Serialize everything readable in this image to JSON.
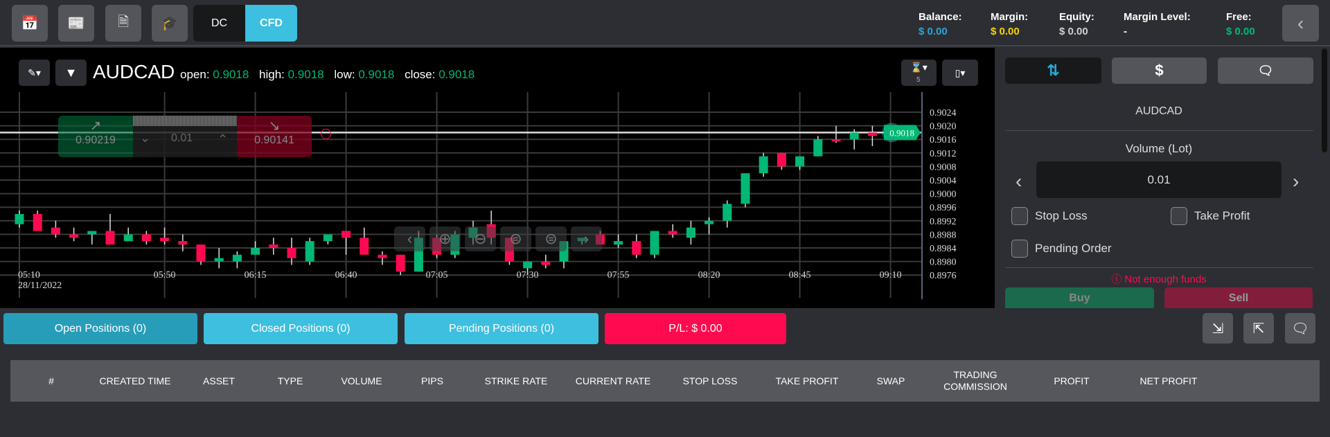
{
  "topbar": {
    "icons": [
      "calendar-icon",
      "economic-news-icon",
      "news-icon",
      "education-icon"
    ],
    "mode_dc": "DC",
    "mode_cfd": "CFD",
    "stats": {
      "balance_label": "Balance:",
      "balance_value": "$ 0.00",
      "margin_label": "Margin:",
      "margin_value": "$ 0.00",
      "equity_label": "Equity:",
      "equity_value": "$ 0.00",
      "margin_level_label": "Margin Level:",
      "margin_level_value": "-",
      "free_label": "Free:",
      "free_value": "$ 0.00"
    },
    "colors": {
      "balance": "#2aa6d6",
      "margin": "#f5d400",
      "equity": "#d0d0d0",
      "free": "#00b874",
      "cfd_active": "#3dbfe0"
    }
  },
  "chart_header": {
    "symbol": "AUDCAD",
    "open_label": "open:",
    "open": "0.9018",
    "high_label": "high:",
    "high": "0.9018",
    "low_label": "low:",
    "low": "0.9018",
    "close_label": "close:",
    "close": "0.9018",
    "interval_badge": "5"
  },
  "trade_widget": {
    "buy_price": "0.90219",
    "sell_price": "0.90141",
    "volume": "0.01"
  },
  "chart_data": {
    "type": "candlestick",
    "date_label": "28/11/2022",
    "current_price": "0.9018",
    "ylim": [
      0.8972,
      0.9028
    ],
    "y_ticks": [
      "0.9024",
      "0.9020",
      "0.9016",
      "0.9012",
      "0.9008",
      "0.9004",
      "0.9000",
      "0.8996",
      "0.8992",
      "0.8988",
      "0.8984",
      "0.8980",
      "0.8976"
    ],
    "x_ticks": [
      "05:10",
      "05:50",
      "06:15",
      "06:40",
      "07:05",
      "07:30",
      "07:55",
      "08:20",
      "08:45",
      "09:10"
    ],
    "candles": [
      {
        "t": "05:10",
        "o": 0.8991,
        "h": 0.8995,
        "l": 0.899,
        "c": 0.8994
      },
      {
        "t": "05:15",
        "o": 0.8994,
        "h": 0.8995,
        "l": 0.8989,
        "c": 0.8989
      },
      {
        "t": "05:20",
        "o": 0.899,
        "h": 0.8992,
        "l": 0.8987,
        "c": 0.8988
      },
      {
        "t": "05:25",
        "o": 0.8988,
        "h": 0.899,
        "l": 0.8986,
        "c": 0.8987
      },
      {
        "t": "05:30",
        "o": 0.8988,
        "h": 0.8989,
        "l": 0.8985,
        "c": 0.8989
      },
      {
        "t": "05:35",
        "o": 0.8989,
        "h": 0.8994,
        "l": 0.8985,
        "c": 0.8985
      },
      {
        "t": "05:40",
        "o": 0.8986,
        "h": 0.899,
        "l": 0.8986,
        "c": 0.8988
      },
      {
        "t": "05:45",
        "o": 0.8988,
        "h": 0.8989,
        "l": 0.8985,
        "c": 0.8986
      },
      {
        "t": "05:50",
        "o": 0.8987,
        "h": 0.899,
        "l": 0.8985,
        "c": 0.8986
      },
      {
        "t": "05:55",
        "o": 0.8986,
        "h": 0.8988,
        "l": 0.8983,
        "c": 0.8985
      },
      {
        "t": "06:00",
        "o": 0.8985,
        "h": 0.8985,
        "l": 0.8979,
        "c": 0.898
      },
      {
        "t": "06:05",
        "o": 0.898,
        "h": 0.8984,
        "l": 0.8978,
        "c": 0.8981
      },
      {
        "t": "06:10",
        "o": 0.898,
        "h": 0.8983,
        "l": 0.8978,
        "c": 0.8982
      },
      {
        "t": "06:15",
        "o": 0.8982,
        "h": 0.8986,
        "l": 0.8982,
        "c": 0.8984
      },
      {
        "t": "06:20",
        "o": 0.8985,
        "h": 0.8987,
        "l": 0.8982,
        "c": 0.8984
      },
      {
        "t": "06:25",
        "o": 0.8984,
        "h": 0.8987,
        "l": 0.8979,
        "c": 0.8981
      },
      {
        "t": "06:30",
        "o": 0.898,
        "h": 0.8987,
        "l": 0.8979,
        "c": 0.8986
      },
      {
        "t": "06:35",
        "o": 0.8986,
        "h": 0.8988,
        "l": 0.8985,
        "c": 0.8988
      },
      {
        "t": "06:40",
        "o": 0.8989,
        "h": 0.8989,
        "l": 0.8982,
        "c": 0.8987
      },
      {
        "t": "06:45",
        "o": 0.8987,
        "h": 0.899,
        "l": 0.8982,
        "c": 0.8982
      },
      {
        "t": "06:50",
        "o": 0.8982,
        "h": 0.8983,
        "l": 0.8979,
        "c": 0.8981
      },
      {
        "t": "06:55",
        "o": 0.8982,
        "h": 0.8982,
        "l": 0.8976,
        "c": 0.8977
      },
      {
        "t": "07:00",
        "o": 0.8977,
        "h": 0.8989,
        "l": 0.8977,
        "c": 0.8987
      },
      {
        "t": "07:05",
        "o": 0.8987,
        "h": 0.8988,
        "l": 0.8981,
        "c": 0.8982
      },
      {
        "t": "07:10",
        "o": 0.8982,
        "h": 0.8989,
        "l": 0.8981,
        "c": 0.8988
      },
      {
        "t": "07:15",
        "o": 0.8987,
        "h": 0.8992,
        "l": 0.8985,
        "c": 0.899
      },
      {
        "t": "07:20",
        "o": 0.8991,
        "h": 0.8995,
        "l": 0.8985,
        "c": 0.8987
      },
      {
        "t": "07:25",
        "o": 0.8987,
        "h": 0.8987,
        "l": 0.8979,
        "c": 0.898
      },
      {
        "t": "07:30",
        "o": 0.8978,
        "h": 0.898,
        "l": 0.8976,
        "c": 0.898
      },
      {
        "t": "07:35",
        "o": 0.898,
        "h": 0.8982,
        "l": 0.8978,
        "c": 0.8979
      },
      {
        "t": "07:40",
        "o": 0.898,
        "h": 0.8986,
        "l": 0.8978,
        "c": 0.8986
      },
      {
        "t": "07:45",
        "o": 0.8986,
        "h": 0.8987,
        "l": 0.8985,
        "c": 0.8987
      },
      {
        "t": "07:50",
        "o": 0.8988,
        "h": 0.8989,
        "l": 0.8985,
        "c": 0.8985
      },
      {
        "t": "07:55",
        "o": 0.8985,
        "h": 0.8988,
        "l": 0.8984,
        "c": 0.8986
      },
      {
        "t": "08:00",
        "o": 0.8986,
        "h": 0.8988,
        "l": 0.8981,
        "c": 0.8982
      },
      {
        "t": "08:05",
        "o": 0.8982,
        "h": 0.8989,
        "l": 0.8981,
        "c": 0.8989
      },
      {
        "t": "08:10",
        "o": 0.8989,
        "h": 0.8991,
        "l": 0.8987,
        "c": 0.8988
      },
      {
        "t": "08:15",
        "o": 0.8987,
        "h": 0.8992,
        "l": 0.8985,
        "c": 0.899
      },
      {
        "t": "08:20",
        "o": 0.8991,
        "h": 0.8993,
        "l": 0.8988,
        "c": 0.8992
      },
      {
        "t": "08:25",
        "o": 0.8992,
        "h": 0.8998,
        "l": 0.899,
        "c": 0.8997
      },
      {
        "t": "08:30",
        "o": 0.8997,
        "h": 0.9006,
        "l": 0.8996,
        "c": 0.9006
      },
      {
        "t": "08:35",
        "o": 0.9006,
        "h": 0.9012,
        "l": 0.9005,
        "c": 0.9011
      },
      {
        "t": "08:40",
        "o": 0.9012,
        "h": 0.9012,
        "l": 0.9007,
        "c": 0.9008
      },
      {
        "t": "08:45",
        "o": 0.9008,
        "h": 0.9011,
        "l": 0.9007,
        "c": 0.9011
      },
      {
        "t": "08:50",
        "o": 0.9011,
        "h": 0.9017,
        "l": 0.9011,
        "c": 0.9016
      },
      {
        "t": "08:55",
        "o": 0.9016,
        "h": 0.902,
        "l": 0.9015,
        "c": 0.90155
      },
      {
        "t": "09:00",
        "o": 0.9016,
        "h": 0.9019,
        "l": 0.9013,
        "c": 0.9018
      },
      {
        "t": "09:05",
        "o": 0.9018,
        "h": 0.902,
        "l": 0.9014,
        "c": 0.9017
      }
    ],
    "colors": {
      "up": "#00b874",
      "down": "#ff0a50",
      "price_tag": "#00b874"
    }
  },
  "order_panel": {
    "symbol": "AUDCAD",
    "volume_label": "Volume (Lot)",
    "volume_value": "0.01",
    "stop_loss": "Stop Loss",
    "take_profit": "Take Profit",
    "pending_order": "Pending Order",
    "error": "Not enough funds",
    "buy": "Buy",
    "sell": "Sell"
  },
  "bottom": {
    "tabs": [
      "Open Positions  (0)",
      "Closed Positions  (0)",
      "Pending Positions  (0)"
    ],
    "pl": "P/L:  $ 0.00",
    "columns": [
      "#",
      "CREATED TIME",
      "ASSET",
      "TYPE",
      "VOLUME",
      "PIPS",
      "STRIKE RATE",
      "CURRENT RATE",
      "STOP LOSS",
      "TAKE PROFIT",
      "SWAP",
      "TRADING COMMISSION",
      "PROFIT",
      "NET PROFIT"
    ]
  }
}
